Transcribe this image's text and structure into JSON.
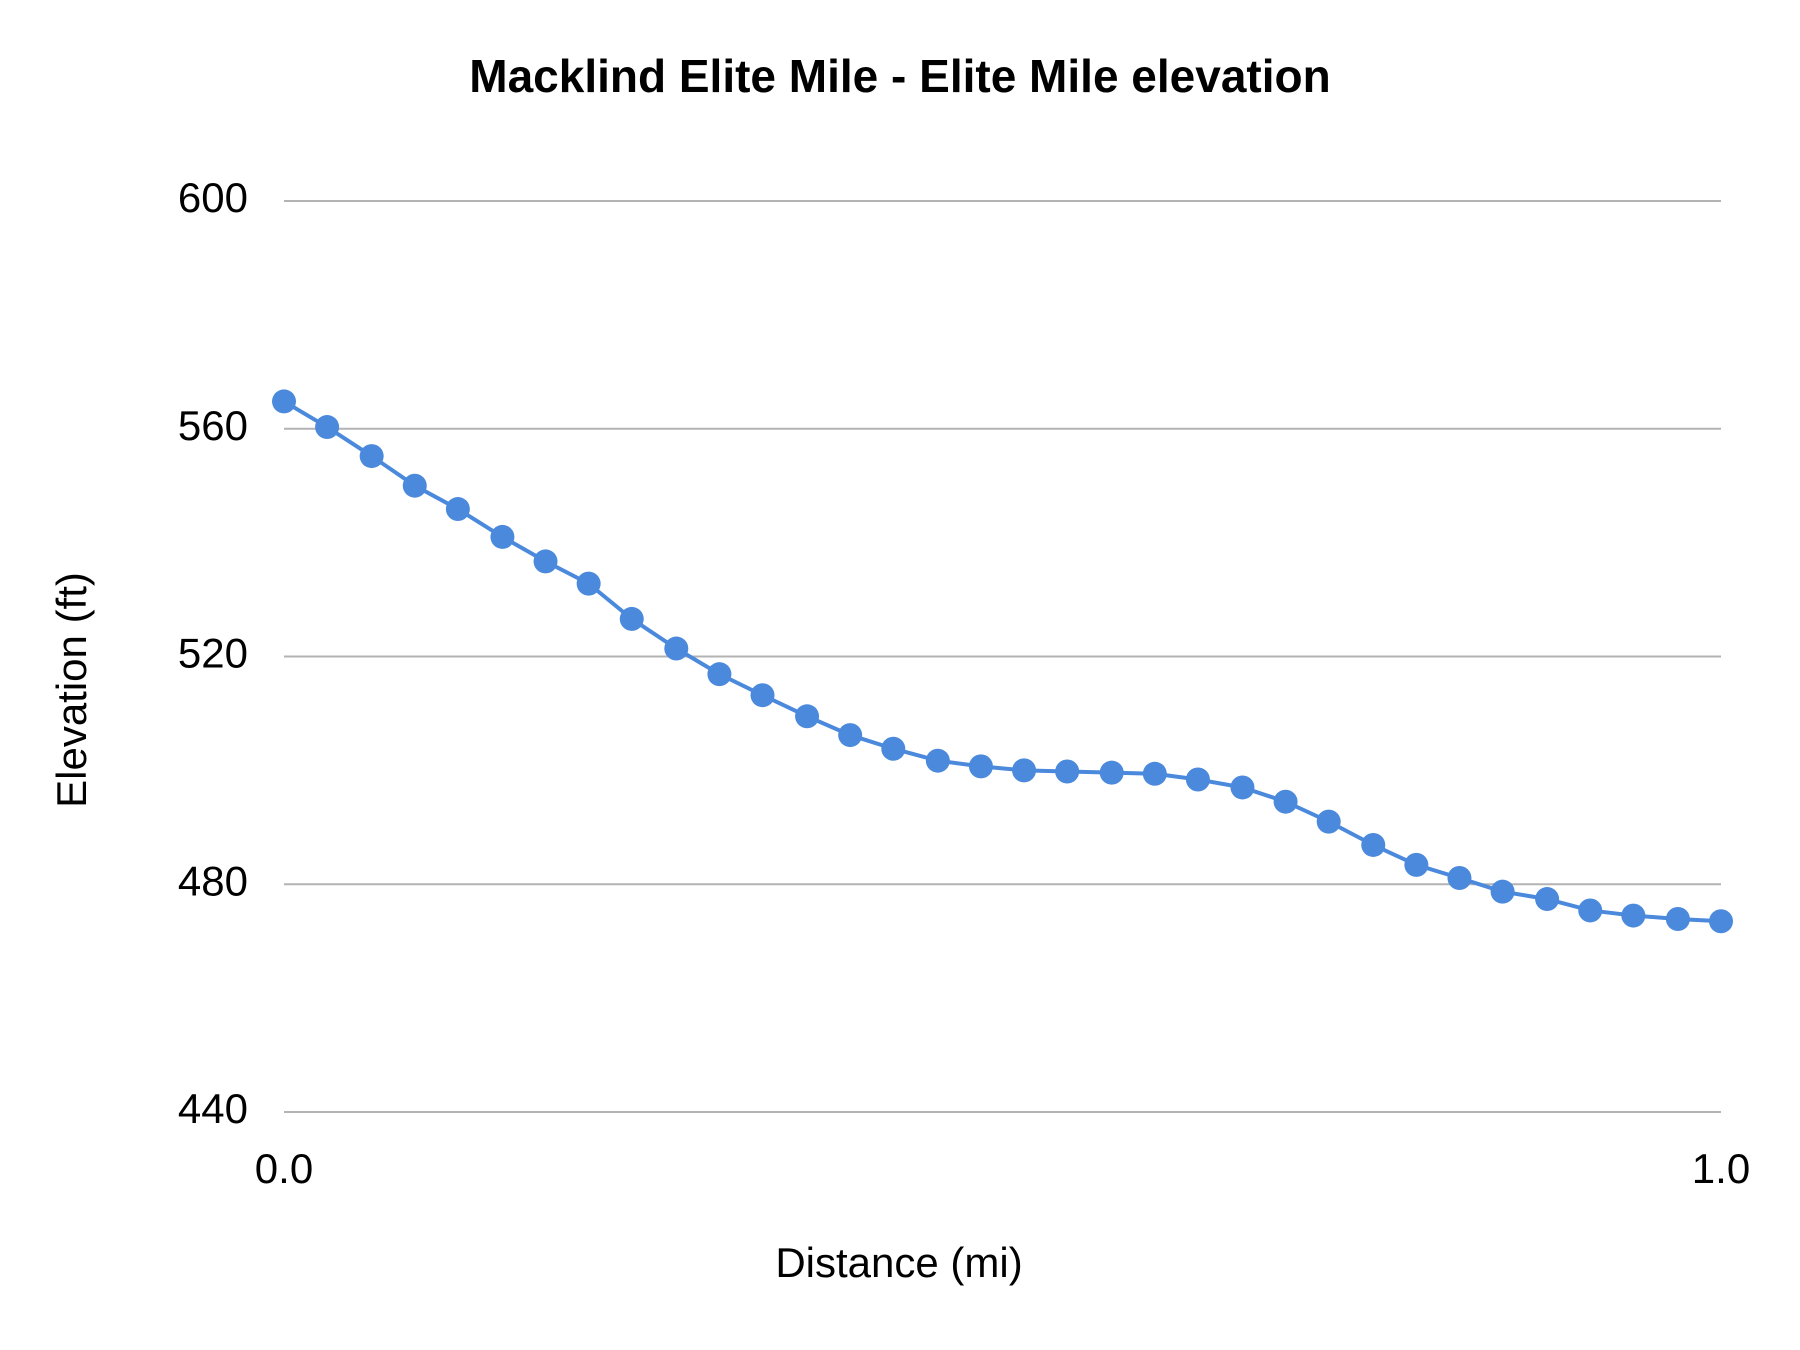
{
  "chart_data": {
    "type": "line",
    "title": "Macklind Elite Mile - Elite Mile elevation",
    "x_label": "Distance (mi)",
    "y_label": "Elevation (ft)",
    "series": [
      {
        "name": "Elevation",
        "color": "#4a89dc",
        "x": [
          0,
          0.03,
          0.061,
          0.091,
          0.121,
          0.152,
          0.182,
          0.212,
          0.242,
          0.273,
          0.303,
          0.333,
          0.364,
          0.394,
          0.424,
          0.455,
          0.485,
          0.515,
          0.545,
          0.576,
          0.606,
          0.636,
          0.667,
          0.697,
          0.727,
          0.758,
          0.788,
          0.818,
          0.848,
          0.879,
          0.909,
          0.939,
          0.97,
          1
        ],
        "values": [
          564.8,
          560.3,
          555.2,
          550.0,
          545.9,
          541.0,
          536.7,
          532.8,
          526.6,
          521.4,
          516.9,
          513.2,
          509.5,
          506.2,
          503.8,
          501.7,
          500.7,
          500.0,
          499.8,
          499.6,
          499.4,
          498.4,
          497.0,
          494.5,
          491.0,
          486.9,
          483.4,
          481.1,
          478.7,
          477.4,
          475.4,
          474.5,
          473.9,
          473.5
        ]
      }
    ],
    "xlim": [
      0,
      1
    ],
    "xticks": [
      {
        "value": 0,
        "label": "0.0"
      },
      {
        "value": 1,
        "label": "1.0"
      }
    ],
    "ylim": [
      440,
      600
    ],
    "yticks": [
      440,
      480,
      520,
      560,
      600
    ],
    "grid": true
  }
}
